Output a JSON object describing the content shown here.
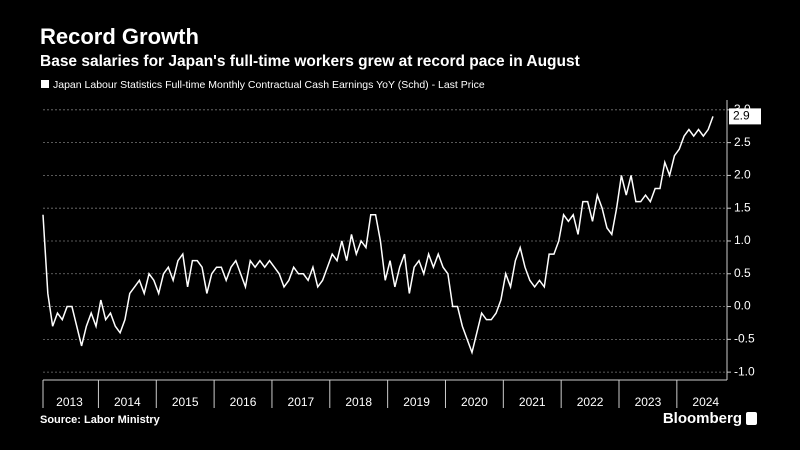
{
  "chart_data": {
    "type": "line",
    "title": "Record Growth",
    "subtitle": "Base salaries for Japan's full-time workers grew at record pace in August",
    "source": "Source: Labor Ministry",
    "brand": "Bloomberg",
    "categories": [
      null,
      null,
      null,
      null,
      null,
      null,
      "2013",
      null,
      null,
      null,
      null,
      null,
      null,
      null,
      null,
      null,
      null,
      null,
      "2014",
      null,
      null,
      null,
      null,
      null,
      null,
      null,
      null,
      null,
      null,
      null,
      "2015",
      null,
      null,
      null,
      null,
      null,
      null,
      null,
      null,
      null,
      null,
      null,
      "2016",
      null,
      null,
      null,
      null,
      null,
      null,
      null,
      null,
      null,
      null,
      null,
      "2017",
      null,
      null,
      null,
      null,
      null,
      null,
      null,
      null,
      null,
      null,
      null,
      "2018",
      null,
      null,
      null,
      null,
      null,
      null,
      null,
      null,
      null,
      null,
      null,
      "2019",
      null,
      null,
      null,
      null,
      null,
      null,
      null,
      null,
      null,
      null,
      null,
      "2020",
      null,
      null,
      null,
      null,
      null,
      null,
      null,
      null,
      null,
      null,
      null,
      "2021",
      null,
      null,
      null,
      null,
      null,
      null,
      null,
      null,
      null,
      null,
      null,
      "2022",
      null,
      null,
      null,
      null,
      null,
      null,
      null,
      null,
      null,
      null,
      null,
      "2023",
      null,
      null,
      null,
      null,
      null,
      null,
      null,
      null,
      null,
      null,
      null,
      "2024",
      null
    ],
    "series": [
      {
        "name": "Japan Labour Statistics Full-time Monthly Contractual Cash Earnings YoY (Schd) - Last Price",
        "color": "#ffffff",
        "values": [
          1.4,
          0.2,
          -0.3,
          -0.1,
          -0.2,
          0.0,
          0.0,
          -0.3,
          -0.6,
          -0.3,
          -0.1,
          -0.3,
          0.1,
          -0.2,
          -0.1,
          -0.3,
          -0.4,
          -0.2,
          0.2,
          0.3,
          0.4,
          0.2,
          0.5,
          0.4,
          0.2,
          0.5,
          0.6,
          0.4,
          0.7,
          0.8,
          0.3,
          0.7,
          0.7,
          0.6,
          0.2,
          0.5,
          0.6,
          0.6,
          0.4,
          0.6,
          0.7,
          0.5,
          0.3,
          0.7,
          0.6,
          0.7,
          0.6,
          0.7,
          0.6,
          0.5,
          0.3,
          0.4,
          0.6,
          0.5,
          0.5,
          0.4,
          0.6,
          0.3,
          0.4,
          0.6,
          0.8,
          0.7,
          1.0,
          0.7,
          1.1,
          0.8,
          1.0,
          0.9,
          1.4,
          1.4,
          1.0,
          0.4,
          0.7,
          0.3,
          0.6,
          0.8,
          0.2,
          0.6,
          0.7,
          0.5,
          0.8,
          0.6,
          0.8,
          0.6,
          0.5,
          0.0,
          0.0,
          -0.3,
          -0.5,
          -0.7,
          -0.4,
          -0.1,
          -0.2,
          -0.2,
          -0.1,
          0.1,
          0.5,
          0.3,
          0.7,
          0.9,
          0.6,
          0.4,
          0.3,
          0.4,
          0.3,
          0.8,
          0.8,
          1.0,
          1.4,
          1.3,
          1.4,
          1.1,
          1.6,
          1.6,
          1.3,
          1.7,
          1.5,
          1.2,
          1.1,
          1.5,
          2.0,
          1.7,
          2.0,
          1.6,
          1.6,
          1.7,
          1.6,
          1.8,
          1.8,
          2.2,
          2.0,
          2.3,
          2.4,
          2.6,
          2.7,
          2.6,
          2.7,
          2.6,
          2.7,
          2.9
        ],
        "last_value_label": "2.9"
      }
    ],
    "ylim": [
      -1.12,
      3.15
    ],
    "yticks": [
      {
        "value": -1,
        "label": "-1.0"
      },
      -0.5,
      {
        "value": 0,
        "label": "0.0"
      },
      0.5,
      {
        "value": 1,
        "label": "1.0"
      },
      1.5,
      {
        "value": 2,
        "label": "2.0"
      },
      2.5,
      {
        "value": 3,
        "label": "3.0"
      }
    ],
    "grid": true
  }
}
